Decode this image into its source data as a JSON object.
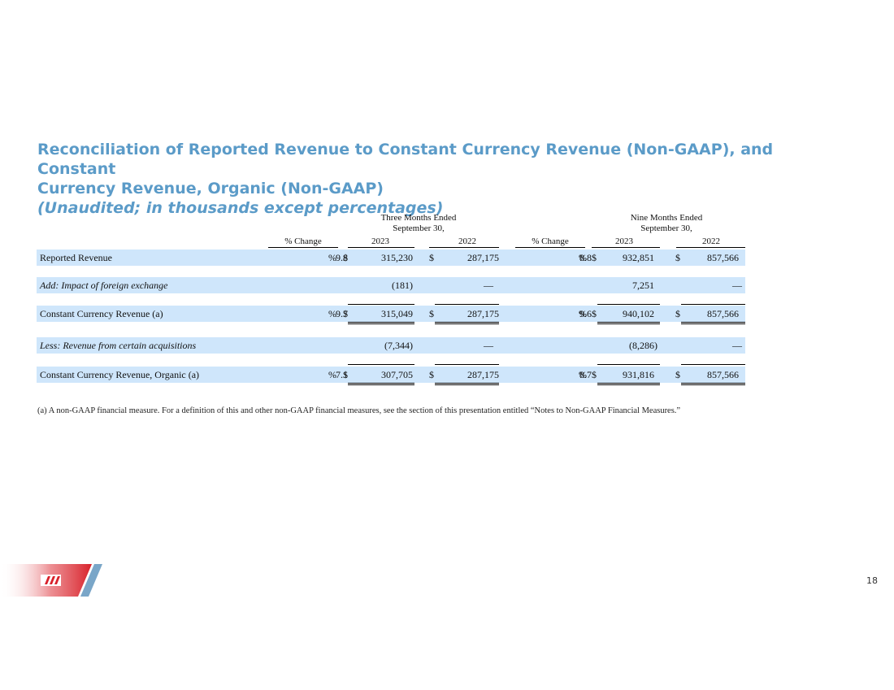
{
  "title": {
    "line1": "Reconciliation of Reported Revenue to Constant Currency Revenue (Non-GAAP), and Constant",
    "line2": "Currency Revenue, Organic (Non-GAAP)",
    "subtitle": "(Unaudited; in thousands except percentages)"
  },
  "headers": {
    "three_months_line1": "Three Months Ended",
    "three_months_line2": "September 30,",
    "nine_months_line1": "Nine Months Ended",
    "nine_months_line2": "September 30,",
    "pct_change_q": "% Change",
    "y2023_q": "2023",
    "y2022_q": "2022",
    "pct_change_n": "% Change",
    "y2023_n": "2023",
    "y2022_n": "2022"
  },
  "rows": [
    {
      "label": "Reported Revenue",
      "q_pct": "9.8",
      "q_pct_sym": "%",
      "q_dollar": "$",
      "q_2023": "315,230",
      "q_2022_dollar": "$",
      "q_2022": "287,175",
      "n_pct": "8.8",
      "n_pct_sym": "%",
      "n_dollar": "$",
      "n_2023": "932,851",
      "n_2022_dollar": "$",
      "n_2022": "857,566"
    },
    {
      "label": "Add: Impact of foreign exchange",
      "q_2023": "(181)",
      "q_2022": "—",
      "n_2023": "7,251",
      "n_2022": "—"
    },
    {
      "label": "Constant Currency Revenue (a)",
      "q_pct": "9.7",
      "q_pct_sym": "%",
      "q_dollar": "$",
      "q_2023": "315,049",
      "q_2022_dollar": "$",
      "q_2022": "287,175",
      "n_pct": "9.6",
      "n_pct_sym": "%",
      "n_dollar": "$",
      "n_2023": "940,102",
      "n_2022_dollar": "$",
      "n_2022": "857,566"
    },
    {
      "label": "Less: Revenue from certain acquisitions",
      "q_2023": "(7,344)",
      "q_2022": "—",
      "n_2023": "(8,286)",
      "n_2022": "—"
    },
    {
      "label": "Constant Currency Revenue, Organic (a)",
      "q_pct": "7.1",
      "q_pct_sym": "%",
      "q_dollar": "$",
      "q_2023": "307,705",
      "q_2022_dollar": "$",
      "q_2022": "287,175",
      "n_pct": "8.7",
      "n_pct_sym": "%",
      "n_dollar": "$",
      "n_2023": "931,816",
      "n_2022_dollar": "$",
      "n_2022": "857,566"
    }
  ],
  "footnote": "(a) A non-GAAP financial measure. For a definition of this and other non-GAAP financial measures, see the section of this presentation entitled “Notes to Non-GAAP Financial Measures.”",
  "page_number": "18",
  "colors": {
    "title": "#5b9bc8",
    "row_band": "#cfe6fb",
    "logo_red": "#d8222b",
    "logo_blue": "#7aa6c8"
  }
}
